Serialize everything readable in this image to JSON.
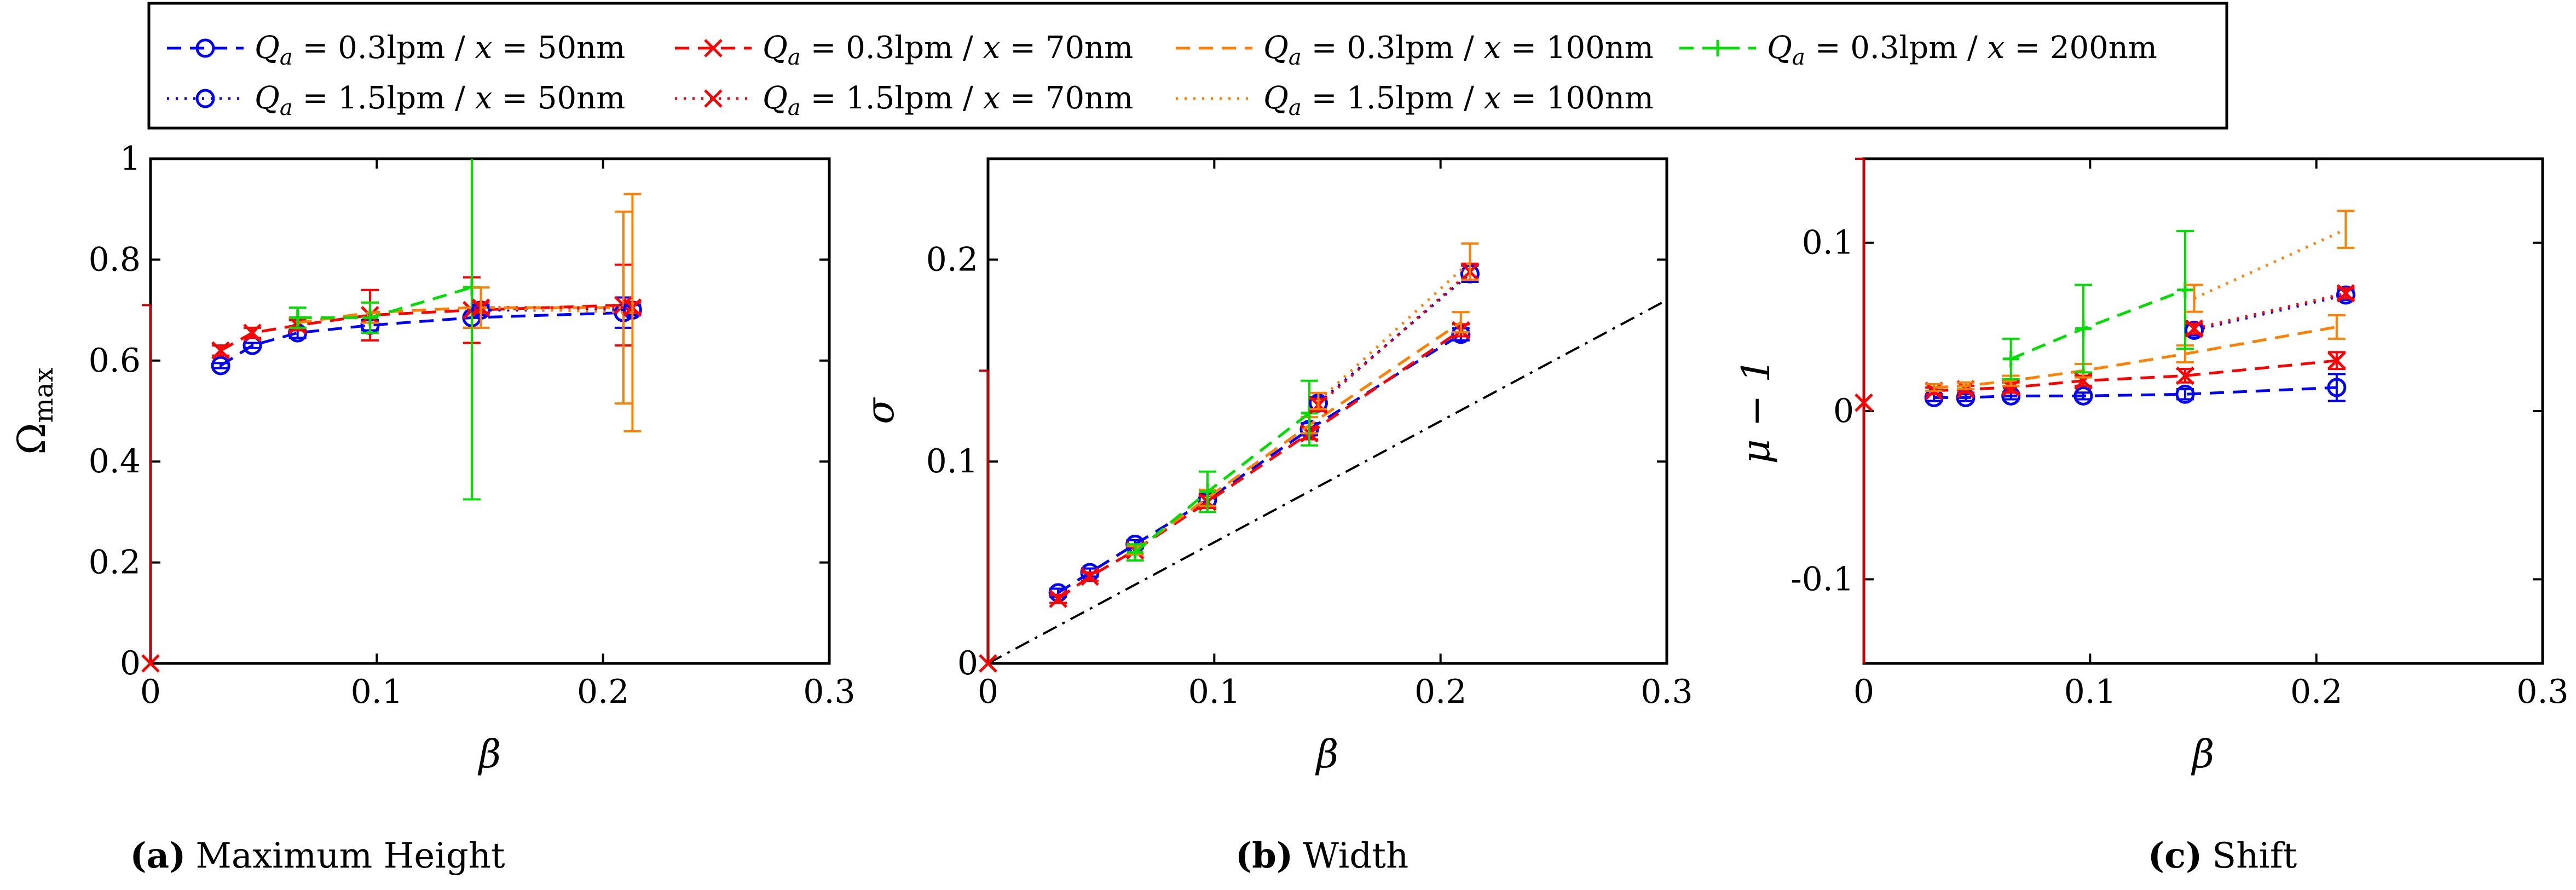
{
  "series_styles": [
    {
      "key": "s03_50",
      "label": "Q_a = 0.3lpm / x = 50nm",
      "label_parts": [
        "Q",
        "a",
        " = 0.3lpm / ",
        "x",
        " = 50nm"
      ],
      "color": "#0000ff",
      "dash": "dashed",
      "marker": "circle"
    },
    {
      "key": "s03_70",
      "label": "Q_a = 0.3lpm / x = 70nm",
      "label_parts": [
        "Q",
        "a",
        " = 0.3lpm / ",
        "x",
        " = 70nm"
      ],
      "color": "#ff0000",
      "dash": "dashed",
      "marker": "x"
    },
    {
      "key": "s03_100",
      "label": "Q_a = 0.3lpm / x = 100nm",
      "label_parts": [
        "Q",
        "a",
        " = 0.3lpm / ",
        "x",
        " = 100nm"
      ],
      "color": "#ff7f00",
      "dash": "dashed",
      "marker": "none"
    },
    {
      "key": "s03_200",
      "label": "Q_a = 0.3lpm / x = 200nm",
      "label_parts": [
        "Q",
        "a",
        " = 0.3lpm / ",
        "x",
        " = 200nm"
      ],
      "color": "#00dd00",
      "dash": "dashed",
      "marker": "plus"
    },
    {
      "key": "s15_50",
      "label": "Q_a = 1.5lpm / x = 50nm",
      "label_parts": [
        "Q",
        "a",
        " = 1.5lpm / ",
        "x",
        " = 50nm"
      ],
      "color": "#0000ff",
      "dash": "dotted",
      "marker": "circle"
    },
    {
      "key": "s15_70",
      "label": "Q_a = 1.5lpm / x = 70nm",
      "label_parts": [
        "Q",
        "a",
        " = 1.5lpm / ",
        "x",
        " = 70nm"
      ],
      "color": "#ff0000",
      "dash": "dotted",
      "marker": "x"
    },
    {
      "key": "s15_100",
      "label": "Q_a = 1.5lpm / x = 100nm",
      "label_parts": [
        "Q",
        "a",
        " = 1.5lpm / ",
        "x",
        " = 100nm"
      ],
      "color": "#ff7f00",
      "dash": "dotted",
      "marker": "none"
    }
  ],
  "chart_data": [
    {
      "type": "line",
      "panel": "a",
      "caption_tag": "(a)",
      "caption_text": "Maximum Height",
      "xlabel": "β",
      "ylabel": "Ω",
      "ylabel_sub": "max",
      "xlim": [
        0,
        0.3
      ],
      "ylim": [
        0,
        1
      ],
      "xticks": [
        0,
        0.1,
        0.2,
        0.3
      ],
      "yticks": [
        0,
        0.2,
        0.4,
        0.6,
        0.8,
        1
      ],
      "xtick_labels": [
        "0",
        "0.1",
        "0.2",
        "0.3"
      ],
      "ytick_labels": [
        "0",
        "0.2",
        "0.4",
        "0.6",
        "0.8",
        "1"
      ],
      "origin_marker": {
        "x": 0,
        "y": 0
      },
      "left_tick": {
        "y": 0.71
      },
      "series": [
        {
          "key": "s03_50",
          "x": [
            0.031,
            0.045,
            0.065,
            0.097,
            0.142,
            0.209
          ],
          "y": [
            0.59,
            0.63,
            0.655,
            0.67,
            0.685,
            0.695
          ],
          "err": [
            0.005,
            0.005,
            0.01,
            0.01,
            0.02,
            0.03
          ]
        },
        {
          "key": "s03_70",
          "x": [
            0.031,
            0.045,
            0.065,
            0.097,
            0.142,
            0.209
          ],
          "y": [
            0.62,
            0.655,
            0.67,
            0.69,
            0.7,
            0.71
          ],
          "err": [
            0.01,
            0.01,
            0.01,
            0.05,
            0.065,
            0.08
          ]
        },
        {
          "key": "s03_100",
          "x": [
            0.065,
            0.097,
            0.142,
            0.209
          ],
          "y": [
            0.675,
            0.695,
            0.705,
            0.705
          ],
          "err": [
            0.01,
            0.02,
            0.04,
            0.19
          ]
        },
        {
          "key": "s03_200",
          "x": [
            0.065,
            0.097,
            0.142
          ],
          "y": [
            0.685,
            0.685,
            0.745
          ],
          "err": [
            0.02,
            0.03,
            0.42
          ]
        },
        {
          "key": "s15_50",
          "x": [
            0.146,
            0.213
          ],
          "y": [
            0.7,
            0.7
          ],
          "err": [
            0.01,
            0.01
          ]
        },
        {
          "key": "s15_70",
          "x": [
            0.146,
            0.213
          ],
          "y": [
            0.705,
            0.705
          ],
          "err": [
            0.01,
            0.01
          ]
        },
        {
          "key": "s15_100",
          "x": [
            0.146,
            0.213
          ],
          "y": [
            0.705,
            0.695
          ],
          "err": [
            0.04,
            0.235
          ]
        }
      ]
    },
    {
      "type": "line",
      "panel": "b",
      "caption_tag": "(b)",
      "caption_text": "Width",
      "xlabel": "β",
      "ylabel": "σ",
      "xlim": [
        0,
        0.3
      ],
      "ylim": [
        0,
        0.25
      ],
      "xticks": [
        0,
        0.1,
        0.2,
        0.3
      ],
      "yticks": [
        0,
        0.1,
        0.2
      ],
      "xtick_labels": [
        "0",
        "0.1",
        "0.2",
        "0.3"
      ],
      "ytick_labels": [
        "0",
        "0.1",
        "0.2"
      ],
      "origin_marker": {
        "x": 0,
        "y": 0
      },
      "left_tick": {
        "y": 0.145
      },
      "reference_line": {
        "slope": 0.6,
        "style": "dashdot",
        "color": "#000000"
      },
      "series": [
        {
          "key": "s03_50",
          "x": [
            0.031,
            0.045,
            0.065,
            0.097,
            0.142,
            0.209
          ],
          "y": [
            0.035,
            0.045,
            0.059,
            0.081,
            0.116,
            0.163
          ],
          "err": [
            0.002,
            0.002,
            0.002,
            0.003,
            0.003,
            0.003
          ]
        },
        {
          "key": "s03_70",
          "x": [
            0.031,
            0.045,
            0.065,
            0.097,
            0.142,
            0.209
          ],
          "y": [
            0.032,
            0.043,
            0.056,
            0.08,
            0.114,
            0.165
          ],
          "err": [
            0.002,
            0.002,
            0.002,
            0.003,
            0.003,
            0.003
          ]
        },
        {
          "key": "s03_100",
          "x": [
            0.065,
            0.097,
            0.142,
            0.209
          ],
          "y": [
            0.056,
            0.082,
            0.118,
            0.169
          ],
          "err": [
            0.002,
            0.004,
            0.004,
            0.005
          ]
        },
        {
          "key": "s03_200",
          "x": [
            0.065,
            0.097,
            0.142
          ],
          "y": [
            0.055,
            0.085,
            0.124
          ],
          "err": [
            0.004,
            0.01,
            0.016
          ]
        },
        {
          "key": "s15_50",
          "x": [
            0.146,
            0.213
          ],
          "y": [
            0.129,
            0.193
          ],
          "err": [
            0.003,
            0.004
          ]
        },
        {
          "key": "s15_70",
          "x": [
            0.146,
            0.213
          ],
          "y": [
            0.128,
            0.194
          ],
          "err": [
            0.003,
            0.004
          ]
        },
        {
          "key": "s15_100",
          "x": [
            0.146,
            0.213
          ],
          "y": [
            0.13,
            0.199
          ],
          "err": [
            0.004,
            0.009
          ]
        }
      ]
    },
    {
      "type": "line",
      "panel": "c",
      "caption_tag": "(c)",
      "caption_text": "Shift",
      "xlabel": "β",
      "ylabel": "μ − 1",
      "xlim": [
        0,
        0.3
      ],
      "ylim": [
        -0.15,
        0.15
      ],
      "xticks": [
        0,
        0.1,
        0.2,
        0.3
      ],
      "yticks": [
        -0.1,
        0,
        0.1
      ],
      "xtick_labels": [
        "0",
        "0.1",
        "0.2",
        "0.3"
      ],
      "ytick_labels": [
        "-0.1",
        "0",
        "0.1"
      ],
      "origin_marker": {
        "x": 0,
        "y": 0.005
      },
      "left_tick": {
        "y": 0.15
      },
      "left_bar": {
        "y1": -0.15,
        "y2": 0.15
      },
      "series": [
        {
          "key": "s03_50",
          "x": [
            0.031,
            0.045,
            0.065,
            0.097,
            0.142,
            0.209
          ],
          "y": [
            0.008,
            0.008,
            0.009,
            0.009,
            0.01,
            0.014
          ],
          "err": [
            0.002,
            0.002,
            0.002,
            0.002,
            0.003,
            0.008
          ]
        },
        {
          "key": "s03_70",
          "x": [
            0.031,
            0.045,
            0.065,
            0.097,
            0.142,
            0.209
          ],
          "y": [
            0.012,
            0.013,
            0.014,
            0.018,
            0.021,
            0.03
          ],
          "err": [
            0.002,
            0.002,
            0.003,
            0.003,
            0.004,
            0.005
          ]
        },
        {
          "key": "s03_100",
          "x": [
            0.031,
            0.045,
            0.065,
            0.097,
            0.142,
            0.209
          ],
          "y": [
            0.014,
            0.015,
            0.018,
            0.024,
            0.034,
            0.05
          ],
          "err": [
            0.002,
            0.002,
            0.003,
            0.004,
            0.005,
            0.007
          ]
        },
        {
          "key": "s03_200",
          "x": [
            0.065,
            0.097,
            0.142
          ],
          "y": [
            0.031,
            0.049,
            0.072
          ],
          "err": [
            0.012,
            0.026,
            0.035
          ]
        },
        {
          "key": "s15_50",
          "x": [
            0.146,
            0.213
          ],
          "y": [
            0.048,
            0.069
          ],
          "err": [
            0.003,
            0.003
          ]
        },
        {
          "key": "s15_70",
          "x": [
            0.146,
            0.213
          ],
          "y": [
            0.049,
            0.07
          ],
          "err": [
            0.003,
            0.003
          ]
        },
        {
          "key": "s15_100",
          "x": [
            0.146,
            0.213
          ],
          "y": [
            0.067,
            0.108
          ],
          "err": [
            0.008,
            0.011
          ]
        }
      ]
    }
  ]
}
